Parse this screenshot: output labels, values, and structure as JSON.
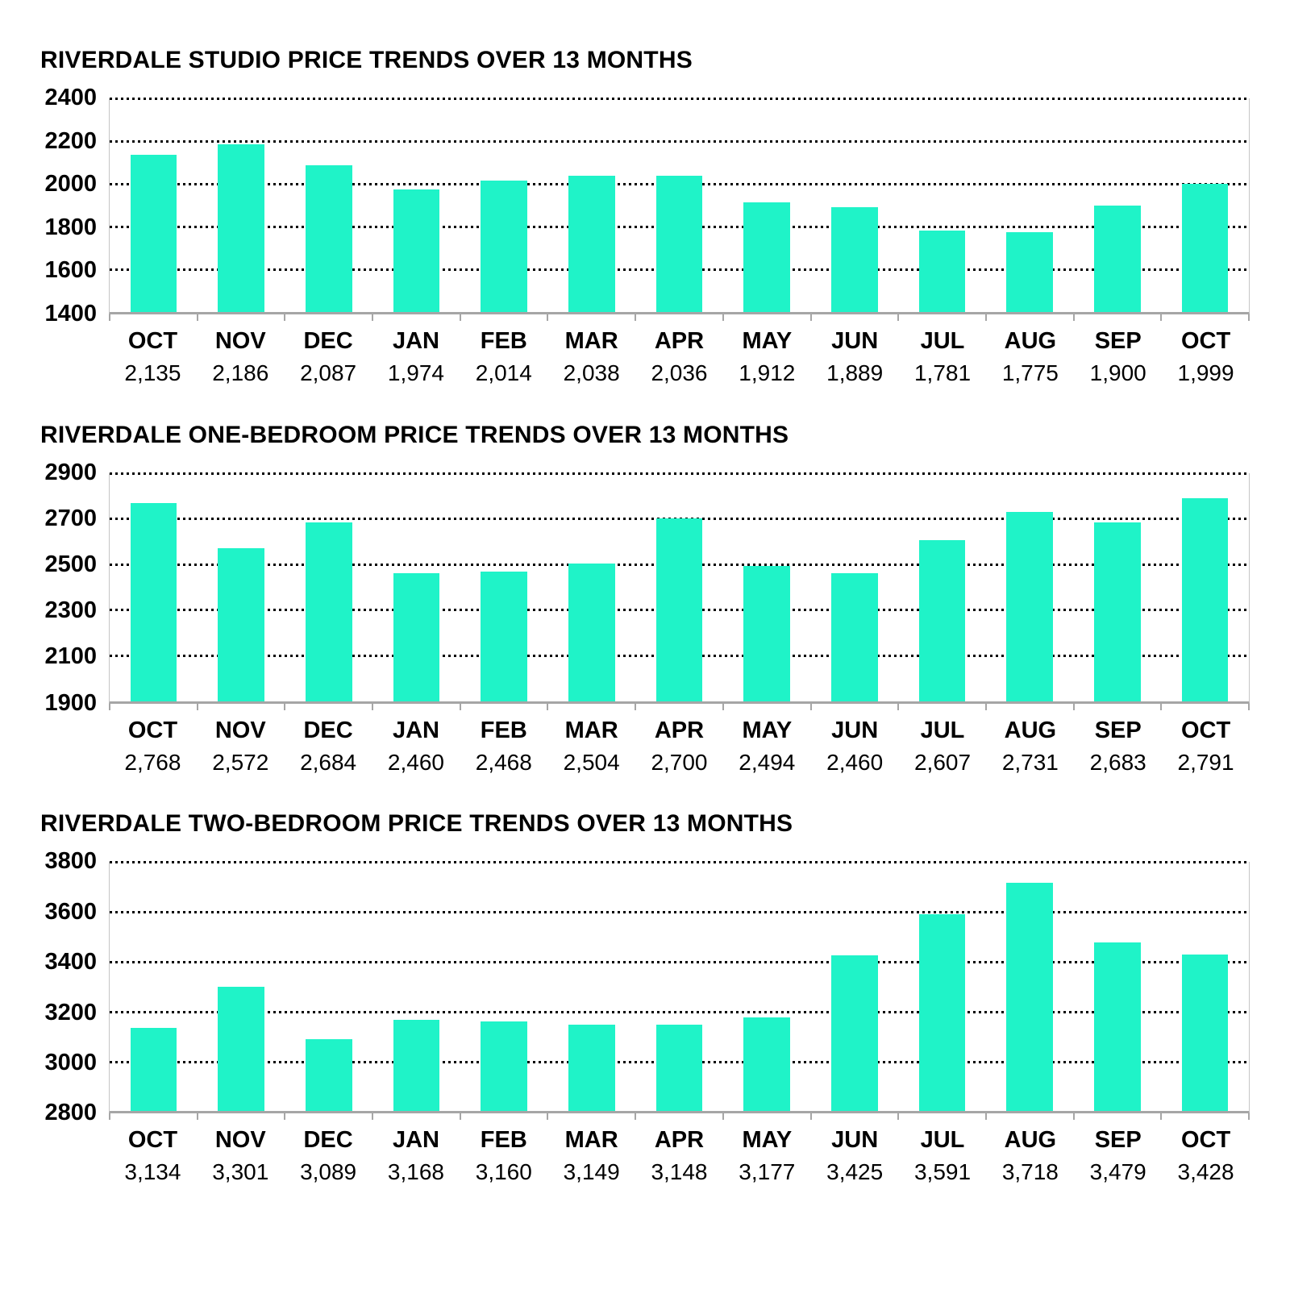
{
  "colors": {
    "bar": "#1ff3c8",
    "axis": "#a6a6a6",
    "plot_border": "#c6c6c6",
    "grid_dot": "#000000",
    "text": "#000000",
    "background": "#ffffff"
  },
  "chart_data": [
    {
      "type": "bar",
      "title": "RIVERDALE STUDIO PRICE TRENDS OVER 13 MONTHS",
      "categories": [
        "OCT",
        "NOV",
        "DEC",
        "JAN",
        "FEB",
        "MAR",
        "APR",
        "MAY",
        "JUN",
        "JUL",
        "AUG",
        "SEP",
        "OCT"
      ],
      "values": [
        2135,
        2186,
        2087,
        1974,
        2014,
        2038,
        2036,
        1912,
        1889,
        1781,
        1775,
        1900,
        1999
      ],
      "value_labels": [
        "2,135",
        "2,186",
        "2,087",
        "1,974",
        "2,014",
        "2,038",
        "2,036",
        "1,912",
        "1,889",
        "1,781",
        "1,775",
        "1,900",
        "1,999"
      ],
      "ylim": [
        1400,
        2400
      ],
      "yticks": [
        2400,
        2200,
        2000,
        1800,
        1600,
        1400
      ],
      "grid": true,
      "legend": "none",
      "xlabel": "",
      "ylabel": ""
    },
    {
      "type": "bar",
      "title": "RIVERDALE ONE-BEDROOM PRICE TRENDS OVER 13 MONTHS",
      "categories": [
        "OCT",
        "NOV",
        "DEC",
        "JAN",
        "FEB",
        "MAR",
        "APR",
        "MAY",
        "JUN",
        "JUL",
        "AUG",
        "SEP",
        "OCT"
      ],
      "values": [
        2768,
        2572,
        2684,
        2460,
        2468,
        2504,
        2700,
        2494,
        2460,
        2607,
        2731,
        2683,
        2791
      ],
      "value_labels": [
        "2,768",
        "2,572",
        "2,684",
        "2,460",
        "2,468",
        "2,504",
        "2,700",
        "2,494",
        "2,460",
        "2,607",
        "2,731",
        "2,683",
        "2,791"
      ],
      "ylim": [
        1900,
        2900
      ],
      "yticks": [
        2900,
        2700,
        2500,
        2300,
        2100,
        1900
      ],
      "grid": true,
      "legend": "none",
      "xlabel": "",
      "ylabel": ""
    },
    {
      "type": "bar",
      "title": "RIVERDALE TWO-BEDROOM PRICE TRENDS OVER 13 MONTHS",
      "categories": [
        "OCT",
        "NOV",
        "DEC",
        "JAN",
        "FEB",
        "MAR",
        "APR",
        "MAY",
        "JUN",
        "JUL",
        "AUG",
        "SEP",
        "OCT"
      ],
      "values": [
        3134,
        3301,
        3089,
        3168,
        3160,
        3149,
        3148,
        3177,
        3425,
        3591,
        3718,
        3479,
        3428
      ],
      "value_labels": [
        "3,134",
        "3,301",
        "3,089",
        "3,168",
        "3,160",
        "3,149",
        "3,148",
        "3,177",
        "3,425",
        "3,591",
        "3,718",
        "3,479",
        "3,428"
      ],
      "ylim": [
        2800,
        3800
      ],
      "yticks": [
        3800,
        3600,
        3400,
        3200,
        3000,
        2800
      ],
      "grid": true,
      "legend": "none",
      "xlabel": "",
      "ylabel": ""
    }
  ]
}
